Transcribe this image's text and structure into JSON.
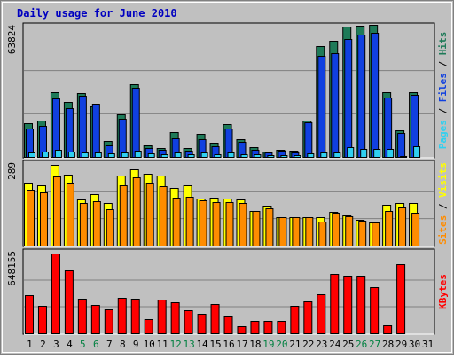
{
  "chart_data": {
    "type": "bar",
    "title": "Daily usage for June 2010",
    "categories": [
      "1",
      "2",
      "3",
      "4",
      "5",
      "6",
      "7",
      "8",
      "9",
      "10",
      "11",
      "12",
      "13",
      "14",
      "15",
      "16",
      "17",
      "18",
      "19",
      "20",
      "21",
      "22",
      "23",
      "24",
      "25",
      "26",
      "27",
      "28",
      "29",
      "30",
      "31"
    ],
    "weekend_days": [
      "5",
      "6",
      "12",
      "13",
      "19",
      "20",
      "26",
      "27"
    ],
    "colors": {
      "hits": "#1e7a58",
      "files": "#1040e0",
      "pages": "#30d0f0",
      "visits": "#ffff00",
      "sites": "#ff8c00",
      "kbytes": "#ff0000",
      "title": "#0000c0",
      "weekend_label": "#008040",
      "panel_bg": "#c0c0c0"
    },
    "panels": [
      {
        "id": "hits_files_pages",
        "max_label": "63824",
        "max": 63824,
        "side_labels": [
          {
            "text": "Pages",
            "color": "#30d0f0"
          },
          {
            "text": " / ",
            "color": "#000000"
          },
          {
            "text": "Files",
            "color": "#1040e0"
          },
          {
            "text": " / ",
            "color": "#000000"
          },
          {
            "text": "Hits",
            "color": "#1e7a58"
          }
        ],
        "series": [
          {
            "name": "Hits",
            "color": "#1e7a58",
            "values": [
              16500,
              17800,
              31900,
              27200,
              31600,
              24700,
              7900,
              21000,
              35800,
              5500,
              4200,
              12100,
              4500,
              11300,
              7200,
              16300,
              8900,
              4700,
              2600,
              3400,
              3100,
              18100,
              54700,
              57400,
              64300,
              64700,
              65000,
              32000,
              13000,
              32000,
              0
            ]
          },
          {
            "name": "Files",
            "color": "#1040e0",
            "values": [
              14000,
              15100,
              28800,
              24000,
              30000,
              26400,
              5900,
              18800,
              34200,
              4400,
              3300,
              9300,
              3000,
              8600,
              5300,
              14100,
              7300,
              3500,
              2100,
              2900,
              2300,
              16900,
              49800,
              51200,
              58300,
              60400,
              61200,
              29500,
              11700,
              30600,
              0
            ]
          },
          {
            "name": "Pages",
            "color": "#30d0f0",
            "values": [
              2200,
              2600,
              3700,
              2800,
              2100,
              2400,
              1900,
              2100,
              3000,
              1600,
              1200,
              2200,
              1400,
              2100,
              1500,
              2000,
              1500,
              1200,
              900,
              900,
              1000,
              1800,
              2200,
              2300,
              4700,
              4100,
              3800,
              3800,
              600,
              5400,
              0
            ]
          }
        ]
      },
      {
        "id": "visits_sites",
        "max_label": "289",
        "max": 289,
        "side_labels": [
          {
            "text": "Sites",
            "color": "#ff8c00"
          },
          {
            "text": " / ",
            "color": "#000000"
          },
          {
            "text": "Visits",
            "color": "#ffff00"
          }
        ],
        "series": [
          {
            "name": "Visits",
            "color": "#ffff00",
            "values": [
              221,
              215,
              289,
              253,
              166,
              183,
              151,
              252,
              273,
              258,
              251,
              207,
              217,
              169,
              170,
              167,
              164,
              125,
              142,
              103,
              102,
              103,
              103,
              120,
              107,
              92,
              82,
              146,
              151,
              152,
              0
            ]
          },
          {
            "name": "Sites",
            "color": "#ff8c00",
            "values": [
              200,
              189,
              248,
              222,
              151,
              160,
              131,
              215,
              243,
              221,
              212,
              170,
              174,
              161,
              157,
              157,
              151,
              123,
              132,
              102,
              102,
              101,
              87,
              116,
              104,
              90,
              82,
              124,
              136,
              117,
              0
            ]
          }
        ]
      },
      {
        "id": "kbytes",
        "max_label": "648155",
        "max": 648155,
        "side_labels": [
          {
            "text": "KBytes",
            "color": "#ff0000"
          }
        ],
        "series": [
          {
            "name": "KBytes",
            "color": "#ff0000",
            "values": [
              312000,
              226000,
              648000,
              512000,
              280000,
              232000,
              192000,
              285000,
              278000,
              118000,
              272000,
              250000,
              190000,
              157000,
              237000,
              137000,
              61000,
              98000,
              100000,
              103000,
              222000,
              262000,
              318000,
              485000,
              467000,
              467000,
              375000,
              62000,
              561000,
              0,
              0
            ]
          }
        ]
      }
    ]
  }
}
